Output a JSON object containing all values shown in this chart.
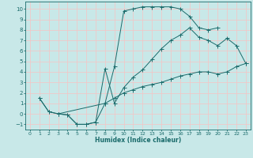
{
  "xlabel": "Humidex (Indice chaleur)",
  "bg_color": "#c8e8e8",
  "grid_color": "#f0c8c8",
  "line_color": "#1a6b6b",
  "xlim_min": -0.5,
  "xlim_max": 23.5,
  "ylim_min": -1.5,
  "ylim_max": 10.7,
  "xticks": [
    0,
    1,
    2,
    3,
    4,
    5,
    6,
    7,
    8,
    9,
    10,
    11,
    12,
    13,
    14,
    15,
    16,
    17,
    18,
    19,
    20,
    21,
    22,
    23
  ],
  "yticks": [
    -1,
    0,
    1,
    2,
    3,
    4,
    5,
    6,
    7,
    8,
    9,
    10
  ],
  "curve1_x": [
    1,
    2,
    3,
    4,
    5,
    6,
    7,
    8,
    9,
    10,
    11,
    12,
    13,
    14,
    15,
    16,
    17,
    18,
    19,
    20
  ],
  "curve1_y": [
    1.5,
    0.2,
    0.0,
    -0.1,
    -1.0,
    -1.0,
    -0.8,
    1.0,
    4.5,
    9.8,
    10.0,
    10.2,
    10.2,
    10.2,
    10.2,
    10.0,
    9.3,
    8.2,
    8.0,
    8.2
  ],
  "curve2_x": [
    1,
    2,
    3,
    4,
    5,
    6,
    7,
    8,
    9,
    10,
    11,
    12,
    13,
    14,
    15,
    16,
    17,
    18,
    19,
    20,
    21,
    22,
    23
  ],
  "curve2_y": [
    1.5,
    0.2,
    0.0,
    -0.1,
    -1.0,
    -1.0,
    -0.8,
    4.3,
    1.0,
    2.5,
    3.5,
    4.2,
    5.2,
    6.2,
    7.0,
    7.5,
    8.2,
    7.3,
    7.0,
    6.5,
    7.2,
    6.5,
    4.8
  ],
  "curve3_x": [
    3,
    8,
    9,
    10,
    11,
    12,
    13,
    14,
    15,
    16,
    17,
    18,
    19,
    20,
    21,
    22,
    23
  ],
  "curve3_y": [
    0.0,
    1.0,
    1.5,
    2.0,
    2.3,
    2.6,
    2.8,
    3.0,
    3.3,
    3.6,
    3.8,
    4.0,
    4.0,
    3.8,
    4.0,
    4.5,
    4.8
  ]
}
